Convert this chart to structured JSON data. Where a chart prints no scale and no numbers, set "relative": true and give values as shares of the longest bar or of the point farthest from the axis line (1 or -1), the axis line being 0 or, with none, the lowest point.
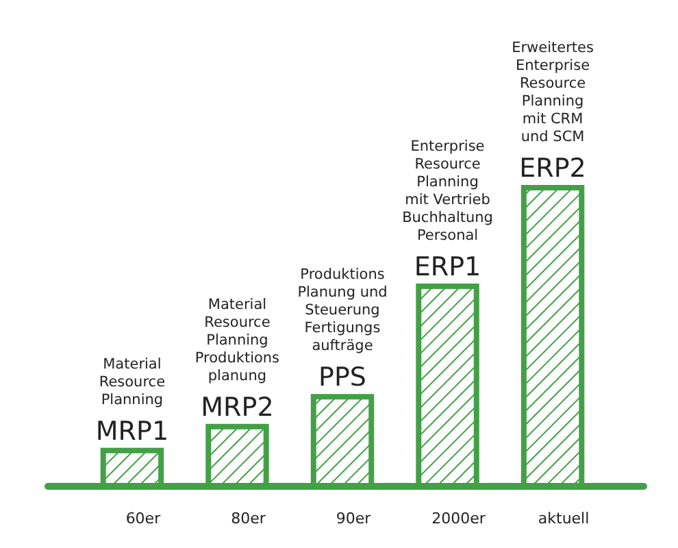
{
  "chart_data": {
    "type": "bar",
    "relative": true,
    "color": "#43a047",
    "categories": [
      "60er",
      "80er",
      "90er",
      "2000er",
      "aktuell"
    ],
    "values": [
      0.12,
      0.2,
      0.3,
      0.67,
      1
    ],
    "annotations": [
      "Material\nResource\nPlanning",
      {
        "text": "MRP1",
        "x": "60er",
        "y": 0.12
      },
      "Material\nResource\nPlanning\nProduktions\nplanung",
      {
        "text": "MRP2",
        "x": "80er",
        "y": 0.2
      },
      "Produktions\nPlanung und\nSteuerung\nFertigungs\naufträge",
      {
        "text": "PPS",
        "x": "90er",
        "y": 0.3
      },
      "Enterprise\nResource\nPlanning\nmit Vertrieb\nBuchhaltung\nPersonal",
      {
        "text": "ERP1",
        "x": "2000er",
        "y": 0.67
      },
      "Erweitertes\nEnterprise\nResource\nPlanning\nmit CRM\nund SCM",
      {
        "text": "ERP2",
        "x": "aktuell",
        "y": 1
      }
    ]
  }
}
